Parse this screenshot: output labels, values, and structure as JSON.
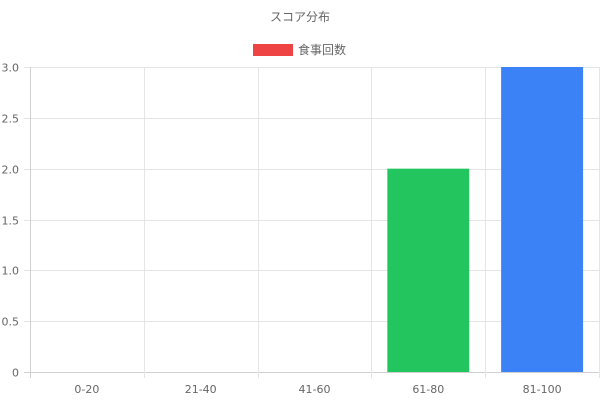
{
  "chart_data": {
    "type": "bar",
    "title": "スコア分布",
    "categories": [
      "0-20",
      "21-40",
      "41-60",
      "61-80",
      "81-100"
    ],
    "series": [
      {
        "name": "食事回数",
        "values": [
          0,
          0,
          0,
          2,
          3
        ],
        "legend_color": "#ef4444",
        "bar_colors": [
          "#ef4444",
          "#f97316",
          "#eab308",
          "#22c55e",
          "#3b82f6"
        ]
      }
    ],
    "ylim": [
      0,
      3
    ],
    "yticks": [
      0,
      0.5,
      1.0,
      1.5,
      2.0,
      2.5,
      3.0
    ],
    "ytick_labels": [
      "0",
      "0.5",
      "1.0",
      "1.5",
      "2.0",
      "2.5",
      "3.0"
    ],
    "xlabel": "",
    "ylabel": "",
    "grid": true,
    "legend_position": "top-center"
  }
}
